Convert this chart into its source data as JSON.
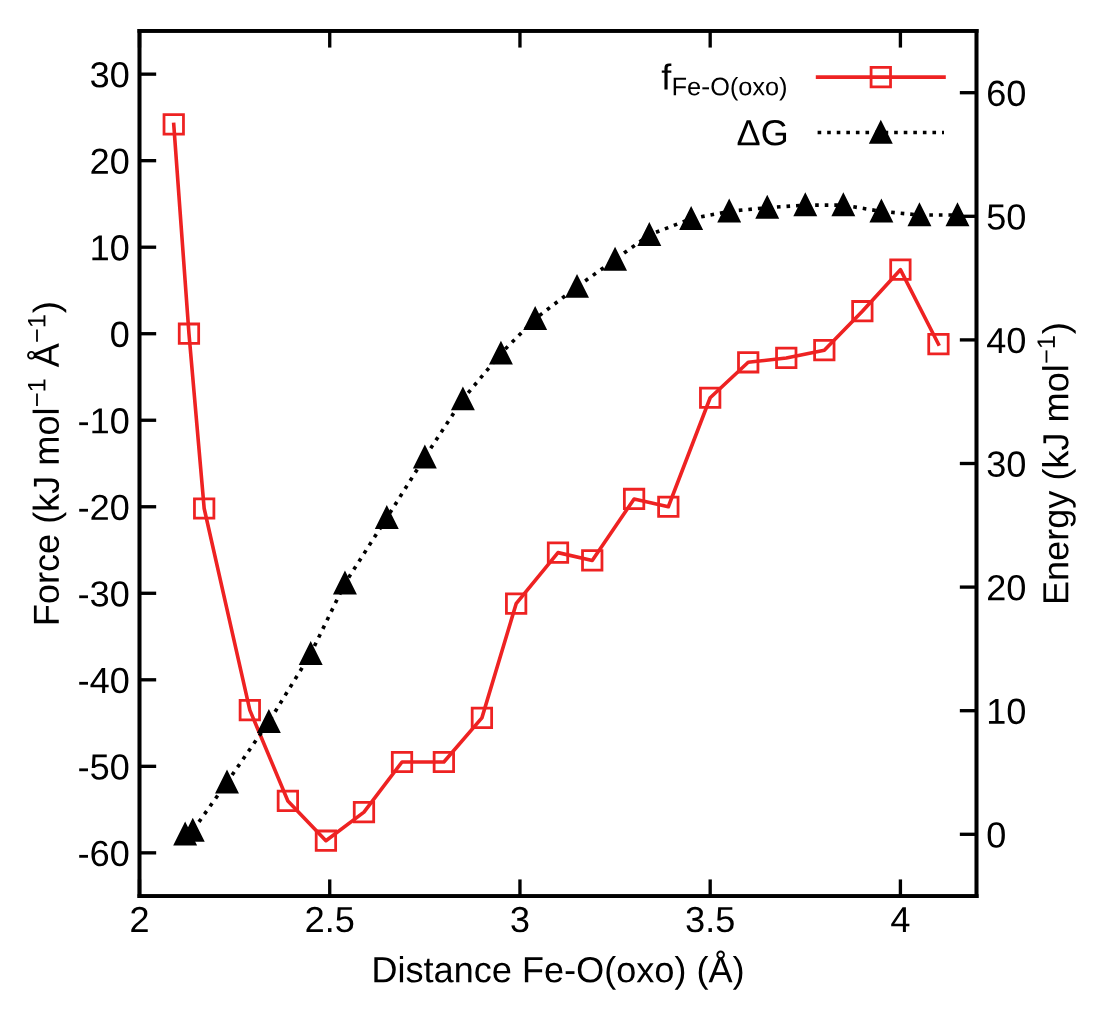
{
  "chart_data": {
    "type": "line",
    "xlabel": "Distance Fe-O(oxo) (Å)",
    "ylabel": "Force (kJ mol$^{−1}$ Å$^{−1}$)",
    "y2label": "Energy (kJ mol$^{−1}$)",
    "xlim": [
      2.0,
      4.2
    ],
    "xticks": [
      2,
      2.5,
      3,
      3.5,
      4
    ],
    "ylim": [
      -65,
      35
    ],
    "yticks": [
      -60,
      -50,
      -40,
      -30,
      -20,
      -10,
      0,
      10,
      20,
      30
    ],
    "y2lim": [
      -5,
      65
    ],
    "y2ticks": [
      0,
      10,
      20,
      30,
      40,
      50,
      60
    ],
    "grid": false,
    "legend": "top right",
    "series": [
      {
        "name": "f$_{Fe-O(oxo)}$",
        "color": "#ee2222",
        "marker": "square",
        "line_style": "solid",
        "x": [
          2.09,
          2.13,
          2.17,
          2.29,
          2.39,
          2.49,
          2.59,
          2.69,
          2.8,
          2.9,
          2.99,
          3.1,
          3.19,
          3.3,
          3.39,
          3.5,
          3.6,
          3.7,
          3.8,
          3.9,
          4.0,
          4.1
        ],
        "values": [
          24.2,
          0,
          -20.2,
          -43.5,
          -54,
          -58.6,
          -55.3,
          -49.5,
          -49.5,
          -44.4,
          -31.2,
          -25.3,
          -26.2,
          -19.1,
          -20,
          -7.4,
          -3.3,
          -2.8,
          -1.9,
          2.6,
          7.4,
          -1.2
        ]
      },
      {
        "name": "ΔG",
        "color": "#000000",
        "marker": "triangle",
        "line_style": "dotted",
        "axis": "y2",
        "x": [
          2.12,
          2.14,
          2.23,
          2.34,
          2.45,
          2.54,
          2.65,
          2.75,
          2.85,
          2.95,
          3.04,
          3.15,
          3.25,
          3.34,
          3.45,
          3.55,
          3.65,
          3.75,
          3.85,
          3.95,
          4.05,
          4.15
        ],
        "values": [
          0,
          0.3,
          4.2,
          9.1,
          14.6,
          20.3,
          25.6,
          30.5,
          35.2,
          38.9,
          41.7,
          44.3,
          46.5,
          48.5,
          49.8,
          50.4,
          50.7,
          50.9,
          50.9,
          50.4,
          50.1,
          50.1
        ]
      }
    ]
  }
}
